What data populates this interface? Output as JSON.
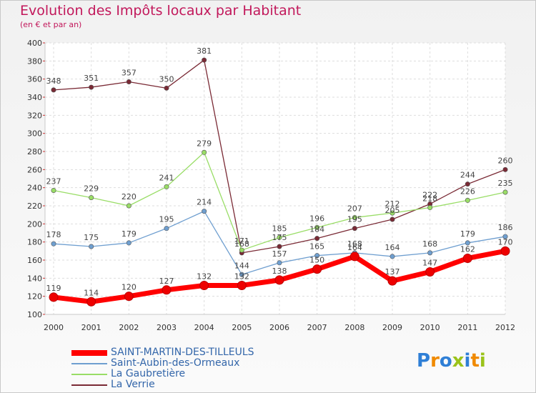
{
  "header": {
    "title": "Evolution des Impôts locaux par Habitant",
    "subtitle": "(en € et par an)"
  },
  "logo": {
    "letters": [
      "P",
      "r",
      "o",
      "x",
      "i",
      "t",
      "i"
    ],
    "colors": [
      "#2f7fd6",
      "#f08a00",
      "#2f7fd6",
      "#9bc31b",
      "#2f7fd6",
      "#f08a00",
      "#9bc31b"
    ]
  },
  "chart_data": {
    "type": "line",
    "title": "Evolution des Impôts locaux par Habitant",
    "subtitle": "(en € et par an)",
    "x": [
      "2000",
      "2001",
      "2002",
      "2003",
      "2004",
      "2005",
      "2006",
      "2007",
      "2008",
      "2009",
      "2010",
      "2011",
      "2012"
    ],
    "ylim": [
      100,
      400
    ],
    "yticks": [
      100,
      120,
      140,
      160,
      180,
      200,
      220,
      240,
      260,
      280,
      300,
      320,
      340,
      360,
      380,
      400
    ],
    "grid": true,
    "legend_position": "bottom-left",
    "series": [
      {
        "name": "SAINT-MARTIN-DES-TILLEULS",
        "color": "#ff0000",
        "values": [
          119,
          114,
          120,
          127,
          132,
          132,
          138,
          150,
          164,
          137,
          147,
          162,
          170
        ]
      },
      {
        "name": "Saint-Aubin-des-Ormeaux",
        "color": "#6f9fd0",
        "values": [
          178,
          175,
          179,
          195,
          214,
          144,
          157,
          165,
          168,
          164,
          168,
          179,
          186
        ]
      },
      {
        "name": "La Gaubretière",
        "color": "#99dd66",
        "values": [
          237,
          229,
          220,
          241,
          279,
          171,
          185,
          196,
          207,
          212,
          218,
          226,
          235
        ]
      },
      {
        "name": "La Verrie",
        "color": "#7a2a35",
        "values": [
          348,
          351,
          357,
          350,
          381,
          168,
          175,
          184,
          195,
          205,
          222,
          244,
          260
        ]
      }
    ]
  }
}
